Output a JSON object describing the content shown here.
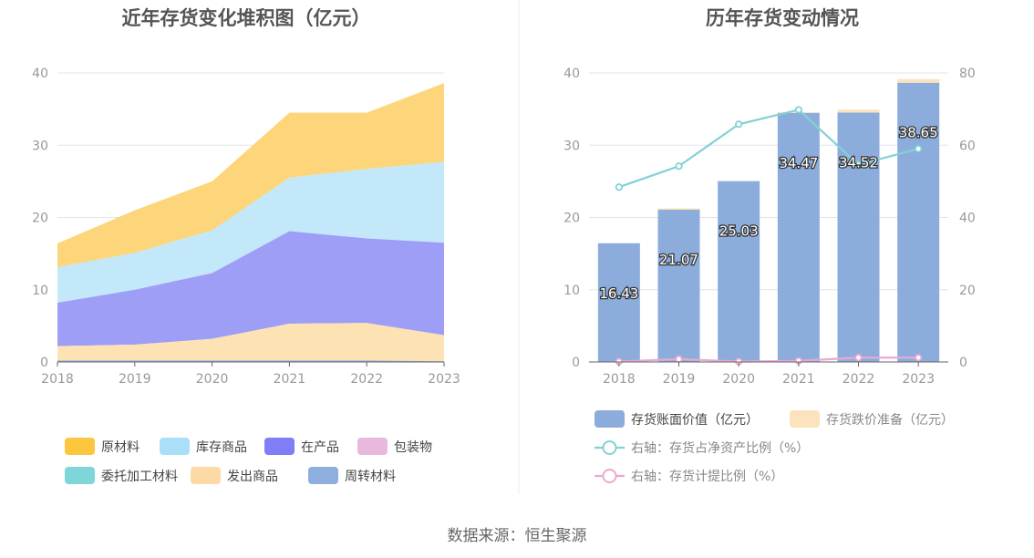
{
  "left": {
    "title": "近年存货变化堆积图（亿元）",
    "chart_data": {
      "type": "area",
      "stacked": true,
      "title": "近年存货变化堆积图（亿元）",
      "categories": [
        "2018",
        "2019",
        "2020",
        "2021",
        "2022",
        "2023"
      ],
      "ylim": [
        0,
        40
      ],
      "yticks": [
        0,
        10,
        20,
        30,
        40
      ],
      "legend_position": "bottom",
      "series": [
        {
          "name": "周转材料",
          "color": "#8eaede",
          "values": [
            0.2,
            0.2,
            0.2,
            0.2,
            0.2,
            0.1
          ]
        },
        {
          "name": "发出商品",
          "color": "#fde2b4",
          "values": [
            2.0,
            2.2,
            3.0,
            5.1,
            5.2,
            3.6
          ]
        },
        {
          "name": "委托加工材料",
          "color": "#7fd6d8",
          "values": [
            0.0,
            0.0,
            0.0,
            0.0,
            0.0,
            0.0
          ]
        },
        {
          "name": "包装物",
          "color": "#e8b9dc",
          "values": [
            0.0,
            0.0,
            0.0,
            0.0,
            0.0,
            0.0
          ]
        },
        {
          "name": "在产品",
          "color": "#9e9ef6",
          "values": [
            6.0,
            7.6,
            9.1,
            12.8,
            11.7,
            12.8
          ]
        },
        {
          "name": "库存商品",
          "color": "#c2e8fa",
          "values": [
            4.9,
            5.1,
            5.9,
            7.4,
            9.6,
            11.2
          ]
        },
        {
          "name": "原材料",
          "color": "#fdd57a",
          "values": [
            3.3,
            5.9,
            6.8,
            9.0,
            7.8,
            10.9
          ]
        }
      ]
    },
    "legend": [
      {
        "name": "原材料",
        "color": "#fdc63f"
      },
      {
        "name": "库存商品",
        "color": "#a9dff8"
      },
      {
        "name": "在产品",
        "color": "#7f7ef5"
      },
      {
        "name": "包装物",
        "color": "#e8b9dc"
      },
      {
        "name": "委托加工材料",
        "color": "#7fd6d8"
      },
      {
        "name": "发出商品",
        "color": "#fdd9a6"
      },
      {
        "name": "周转材料",
        "color": "#8eaede"
      }
    ]
  },
  "right": {
    "title": "历年存货变动情况",
    "chart_data": {
      "type": "bar",
      "title": "历年存货变动情况",
      "categories": [
        "2018",
        "2019",
        "2020",
        "2021",
        "2022",
        "2023"
      ],
      "ylim": [
        0,
        40
      ],
      "yticks": [
        0,
        10,
        20,
        30,
        40
      ],
      "y2lim": [
        0,
        80
      ],
      "y2ticks": [
        0,
        20,
        40,
        60,
        80
      ],
      "legend_position": "bottom",
      "series": [
        {
          "name": "存货账面价值（亿元）",
          "type": "bar",
          "axis": "left",
          "color": "#8caddc",
          "values": [
            16.43,
            21.07,
            25.03,
            34.47,
            34.52,
            38.65
          ],
          "labels": [
            "16.43",
            "21.07",
            "25.03",
            "34.47",
            "34.52",
            "38.65"
          ]
        },
        {
          "name": "存货跌价准备（亿元）",
          "type": "bar",
          "stacked": true,
          "axis": "left",
          "color": "#fde3bd",
          "values": [
            0.0,
            0.2,
            0.0,
            0.1,
            0.4,
            0.5
          ]
        },
        {
          "name": "右轴：存货占净资产比例（%）",
          "type": "line",
          "axis": "right",
          "color": "#82d1d6",
          "values": [
            48.4,
            54.2,
            65.8,
            69.8,
            54.6,
            59.0
          ]
        },
        {
          "name": "右轴：存货计提比例（%）",
          "type": "line",
          "axis": "right",
          "color": "#e8a8d2",
          "values": [
            0.1,
            0.8,
            0.1,
            0.3,
            1.2,
            1.2
          ]
        }
      ]
    }
  },
  "source": "数据来源：恒生聚源"
}
